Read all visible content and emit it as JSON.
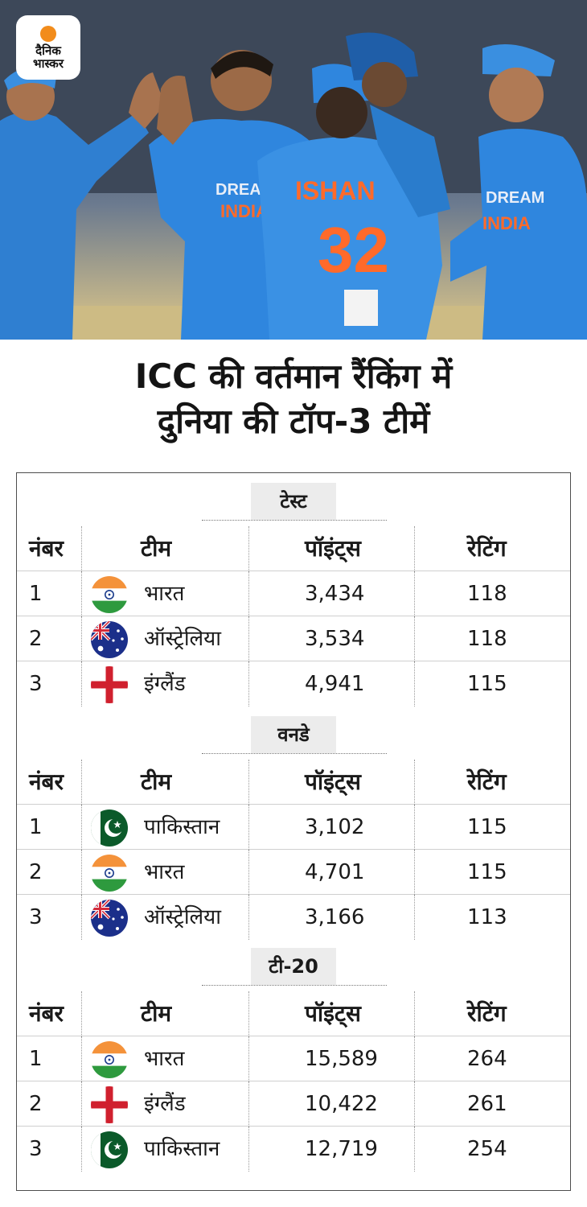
{
  "brand": {
    "logo_line1": "दैनिक",
    "logo_line2": "भास्कर",
    "sun_color": "#f28c1b"
  },
  "photo": {
    "jersey_name": "ISHAN",
    "jersey_number": "32",
    "chest_text_1": "DREAM",
    "chest_text_2": "INDIA"
  },
  "headline": {
    "line1": "ICC की वर्तमान रैंकिंग में",
    "line2": "दुनिया की टॉप-3 टीमें"
  },
  "tables": [
    {
      "format": "टेस्ट",
      "headers": {
        "rank": "नंबर",
        "team": "टीम",
        "points": "पॉइंट्स",
        "rating": "रेटिंग"
      },
      "rows": [
        {
          "rank": "1",
          "flag": "india-flag-icon",
          "team": "भारत",
          "points": "3,434",
          "rating": "118"
        },
        {
          "rank": "2",
          "flag": "australia-flag-icon",
          "team": "ऑस्ट्रेलिया",
          "points": "3,534",
          "rating": "118"
        },
        {
          "rank": "3",
          "flag": "england-flag-icon",
          "team": "इंग्लैंड",
          "points": "4,941",
          "rating": "115"
        }
      ]
    },
    {
      "format": "वनडे",
      "headers": {
        "rank": "नंबर",
        "team": "टीम",
        "points": "पॉइंट्स",
        "rating": "रेटिंग"
      },
      "rows": [
        {
          "rank": "1",
          "flag": "pakistan-flag-icon",
          "team": "पाकिस्तान",
          "points": "3,102",
          "rating": "115"
        },
        {
          "rank": "2",
          "flag": "india-flag-icon",
          "team": "भारत",
          "points": "4,701",
          "rating": "115"
        },
        {
          "rank": "3",
          "flag": "australia-flag-icon",
          "team": "ऑस्ट्रेलिया",
          "points": "3,166",
          "rating": "113"
        }
      ]
    },
    {
      "format": "टी-20",
      "headers": {
        "rank": "नंबर",
        "team": "टीम",
        "points": "पॉइंट्स",
        "rating": "रेटिंग"
      },
      "rows": [
        {
          "rank": "1",
          "flag": "india-flag-icon",
          "team": "भारत",
          "points": "15,589",
          "rating": "264"
        },
        {
          "rank": "2",
          "flag": "england-flag-icon",
          "team": "इंग्लैंड",
          "points": "10,422",
          "rating": "261"
        },
        {
          "rank": "3",
          "flag": "pakistan-flag-icon",
          "team": "पाकिस्तान",
          "points": "12,719",
          "rating": "254"
        }
      ]
    }
  ]
}
